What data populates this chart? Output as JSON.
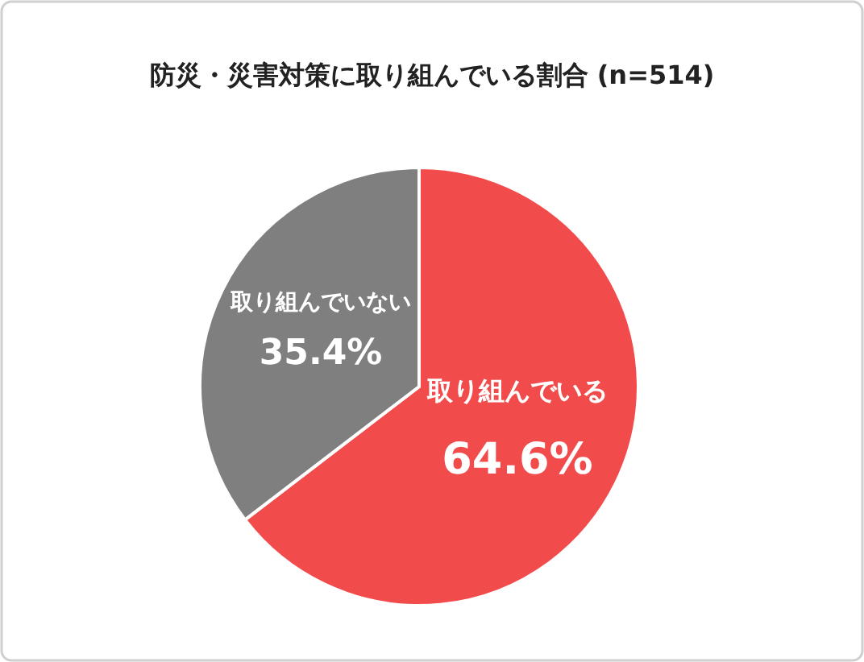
{
  "chart_data": {
    "type": "pie",
    "title": "防災・災害対策に取り組んでいる割合 (n=514)",
    "categories": [
      "取り組んでいる",
      "取り組んでいない"
    ],
    "values": [
      64.6,
      35.4
    ],
    "colors": [
      "#f24b4b",
      "#7f7f7f"
    ],
    "value_labels": [
      "64.6%",
      "35.4%"
    ]
  }
}
